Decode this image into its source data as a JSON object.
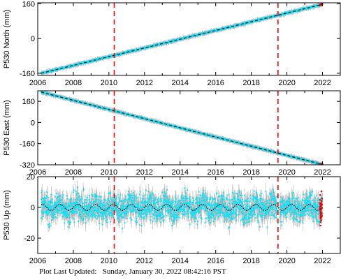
{
  "chart_data": [
    {
      "type": "scatter",
      "ylabel": "P530 North (mm)",
      "xlim": [
        2006,
        2023
      ],
      "ylim": [
        -170,
        165
      ],
      "xticks": [
        2006,
        2008,
        2010,
        2012,
        2014,
        2016,
        2018,
        2020,
        2022
      ],
      "yticks": [
        -160,
        0,
        160
      ],
      "trend": {
        "x": [
          2006.2,
          2022.0
        ],
        "y": [
          -160,
          158
        ]
      },
      "event_lines": [
        2010.3,
        2019.5
      ],
      "point_color": "#00e5ff",
      "model_color": "#000000",
      "event_color": "#ff0000",
      "error_color": "#b4b4b4"
    },
    {
      "type": "scatter",
      "ylabel": "P530 East (mm)",
      "xlim": [
        2006,
        2023
      ],
      "ylim": [
        -320,
        240
      ],
      "xticks": [
        2006,
        2008,
        2010,
        2012,
        2014,
        2016,
        2018,
        2020,
        2022
      ],
      "yticks": [
        -320,
        -160,
        0,
        160
      ],
      "trend": {
        "x": [
          2006.2,
          2022.0
        ],
        "y": [
          230,
          -318
        ]
      },
      "event_lines": [
        2010.3,
        2019.5
      ],
      "point_color": "#00e5ff",
      "model_color": "#000000",
      "event_color": "#ff0000",
      "error_color": "#b4b4b4"
    },
    {
      "type": "scatter",
      "ylabel": "P530 Up (mm)",
      "xlim": [
        2006,
        2023
      ],
      "ylim": [
        -30,
        20
      ],
      "xticks": [
        2006,
        2008,
        2010,
        2012,
        2014,
        2016,
        2018,
        2020,
        2022
      ],
      "yticks": [
        -20,
        0,
        20
      ],
      "trend": {
        "x": [
          2006.2,
          2022.0
        ],
        "y": [
          0,
          0
        ],
        "seasonal_amplitude": 2
      },
      "event_lines": [
        2010.3,
        2019.5
      ],
      "point_color": "#00e5ff",
      "model_color": "#000000",
      "event_color": "#ff0000",
      "error_color": "#b4b4b4"
    }
  ],
  "footer": {
    "label": "Plot Last Updated:",
    "timestamp": "Sunday, January 30, 2022 08:42:16 PST"
  }
}
